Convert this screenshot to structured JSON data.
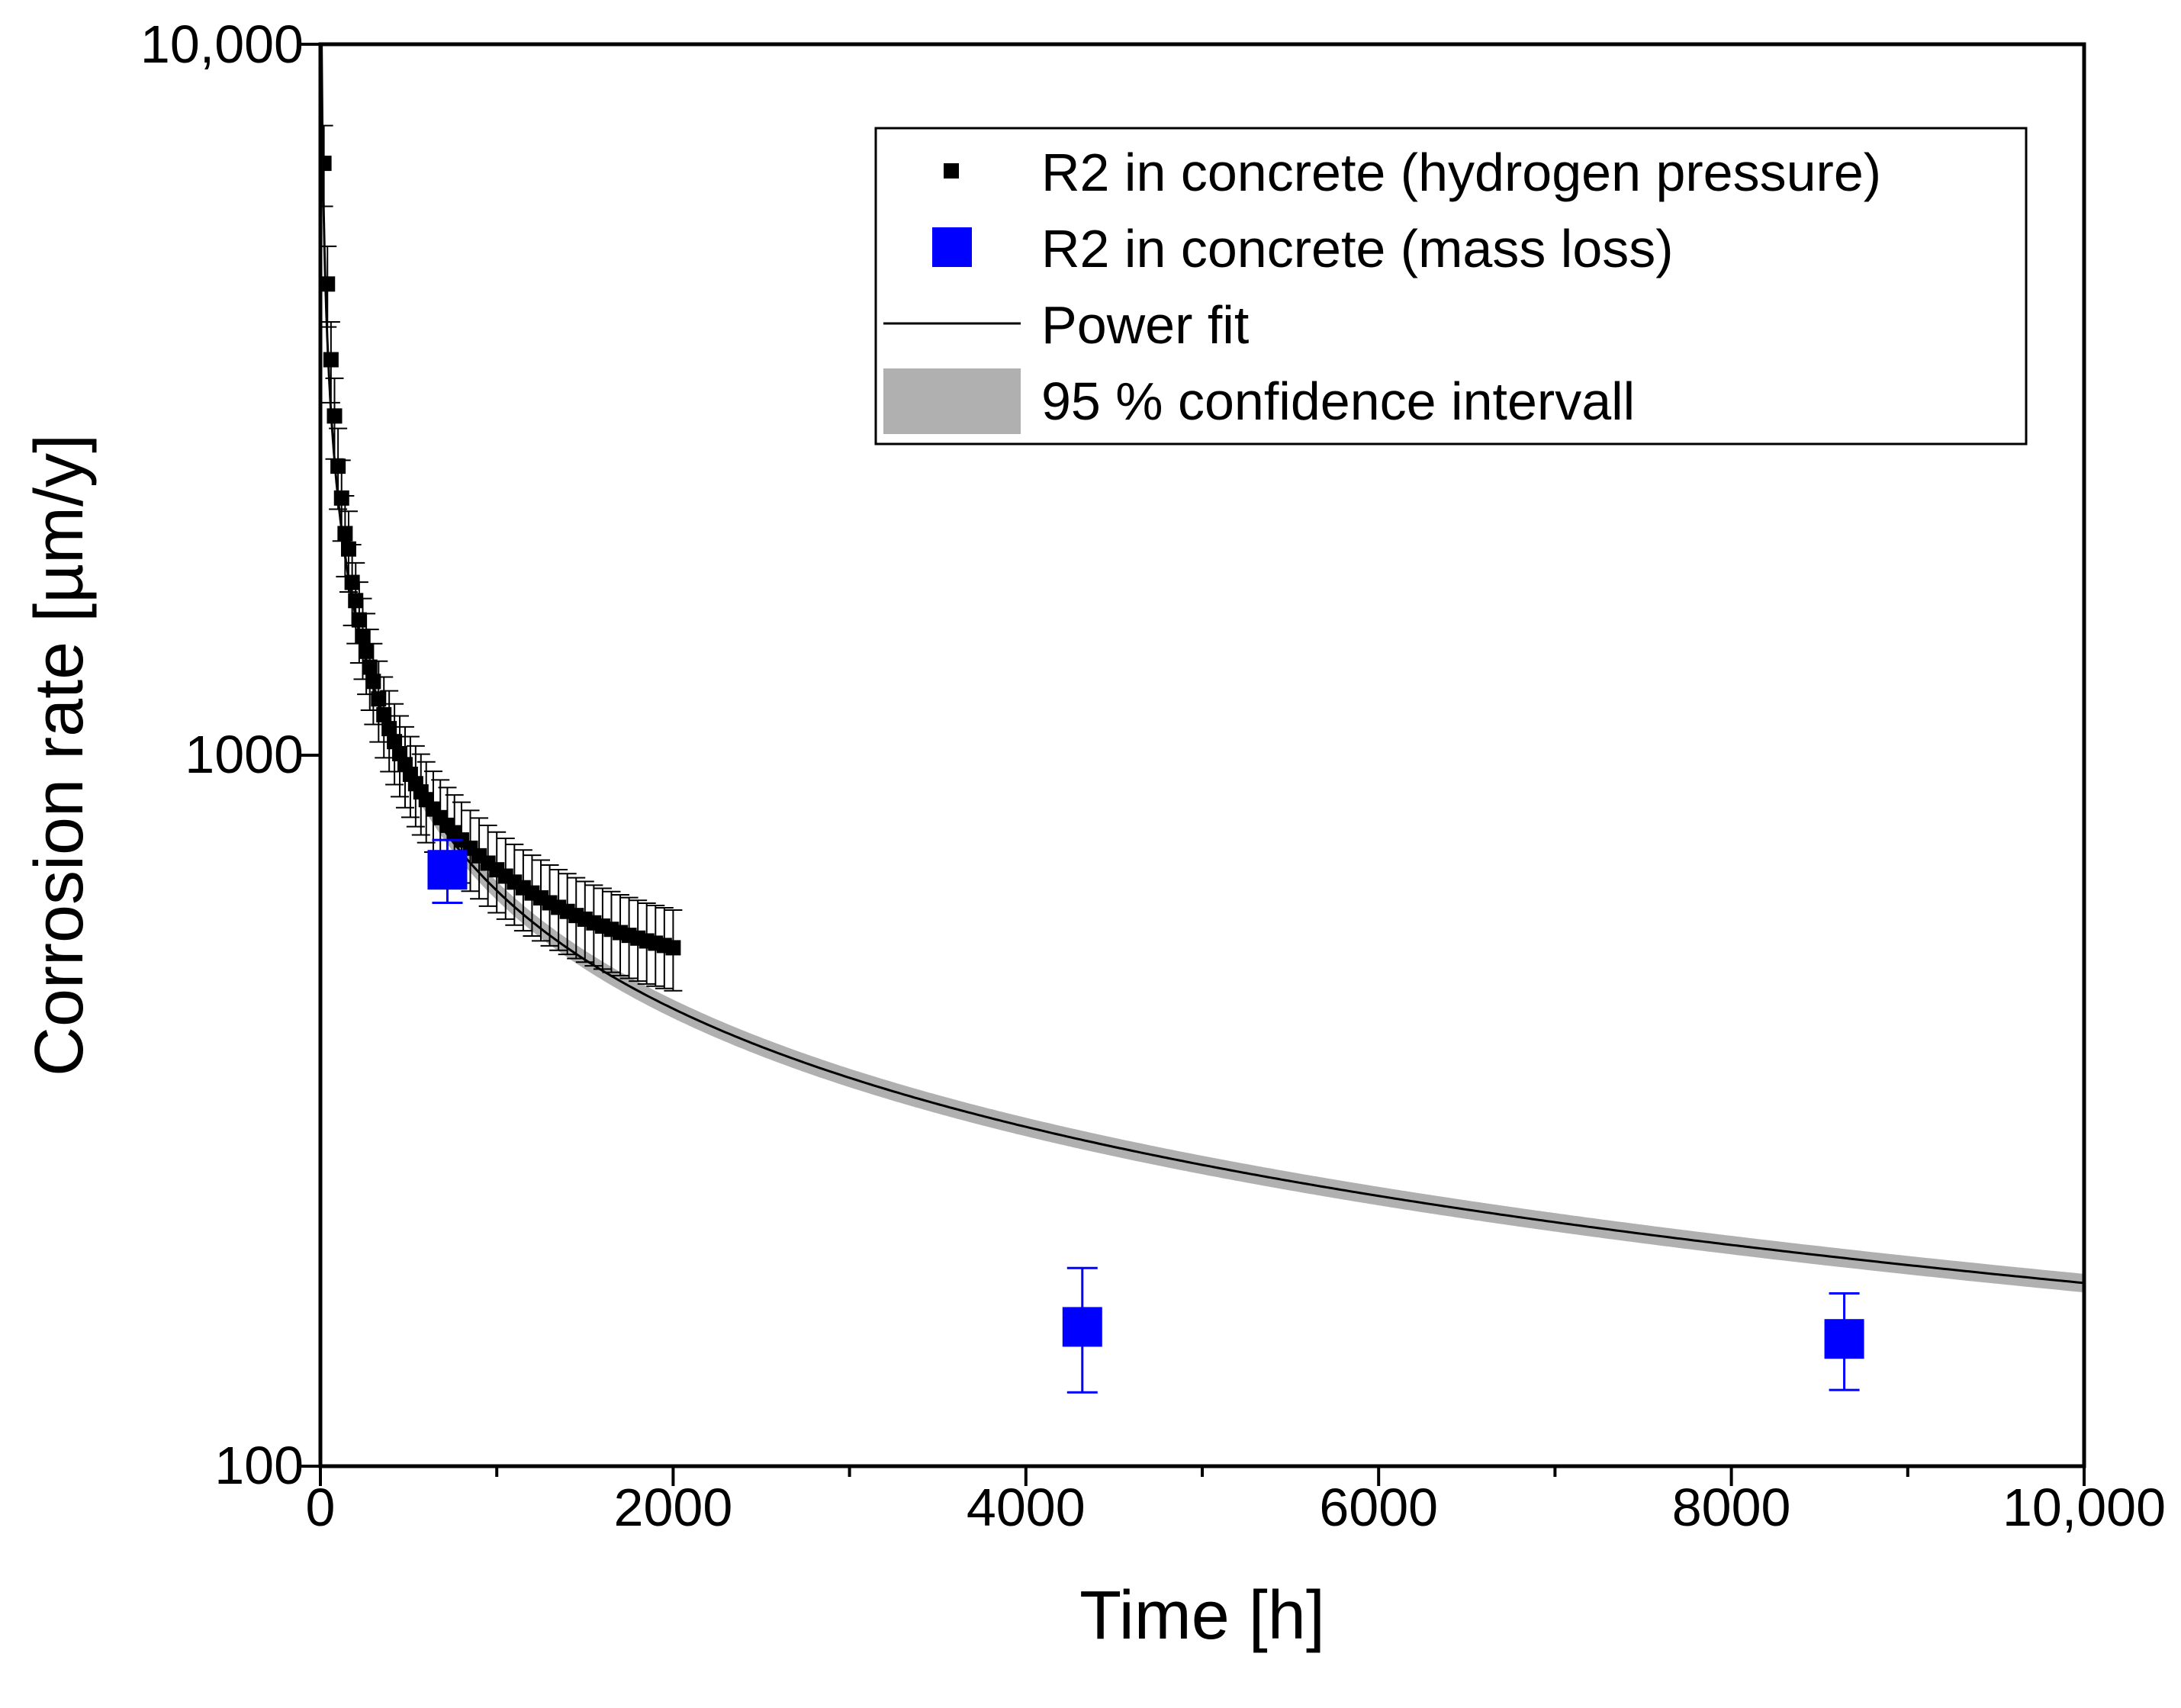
{
  "colors": {
    "hydrogen_marker": "#000000",
    "mass_loss_marker": "#0000ff",
    "fit_line": "#000000",
    "confidence_band": "#b0b0b0",
    "axes": "#000000"
  },
  "chart_data": {
    "type": "scatter",
    "title": "",
    "xlabel": "Time [h]",
    "ylabel": "Corrosion rate [µm/y]",
    "xscale": "linear",
    "yscale": "log",
    "xlim": [
      0,
      10000
    ],
    "ylim": [
      100,
      10000
    ],
    "grid": false,
    "legend_position": "top-right",
    "x_ticks": [
      {
        "value": 0,
        "label": "0"
      },
      {
        "value": 2000,
        "label": "2000"
      },
      {
        "value": 4000,
        "label": "4000"
      },
      {
        "value": 6000,
        "label": "6000"
      },
      {
        "value": 8000,
        "label": "8000"
      },
      {
        "value": 10000,
        "label": "10,000"
      }
    ],
    "y_ticks": [
      {
        "value": 100,
        "label": "100"
      },
      {
        "value": 1000,
        "label": "1000"
      },
      {
        "value": 10000,
        "label": "10,000"
      }
    ],
    "legend": [
      {
        "key": "hydrogen",
        "label": "R2 in concrete (hydrogen pressure)",
        "kind": "marker-small"
      },
      {
        "key": "mass_loss",
        "label": "R2 in concrete (mass loss)",
        "kind": "marker-large"
      },
      {
        "key": "fit",
        "label": "Power fit",
        "kind": "line"
      },
      {
        "key": "band",
        "label": "95 % confidence intervall",
        "kind": "band"
      }
    ],
    "series": [
      {
        "name": "R2 in concrete (hydrogen pressure)",
        "marker": "square-small",
        "relative_error": 0.13,
        "points": [
          {
            "x": 20,
            "y": 6800
          },
          {
            "x": 40,
            "y": 4600
          },
          {
            "x": 60,
            "y": 3600
          },
          {
            "x": 80,
            "y": 3000
          },
          {
            "x": 100,
            "y": 2550
          },
          {
            "x": 120,
            "y": 2300
          },
          {
            "x": 140,
            "y": 2050
          },
          {
            "x": 160,
            "y": 1950
          },
          {
            "x": 180,
            "y": 1750
          },
          {
            "x": 200,
            "y": 1650
          },
          {
            "x": 220,
            "y": 1550
          },
          {
            "x": 240,
            "y": 1470
          },
          {
            "x": 260,
            "y": 1400
          },
          {
            "x": 280,
            "y": 1330
          },
          {
            "x": 300,
            "y": 1270
          },
          {
            "x": 330,
            "y": 1200
          },
          {
            "x": 360,
            "y": 1140
          },
          {
            "x": 390,
            "y": 1090
          },
          {
            "x": 420,
            "y": 1045
          },
          {
            "x": 450,
            "y": 1005
          },
          {
            "x": 480,
            "y": 970
          },
          {
            "x": 510,
            "y": 940
          },
          {
            "x": 540,
            "y": 912
          },
          {
            "x": 570,
            "y": 888
          },
          {
            "x": 600,
            "y": 866
          },
          {
            "x": 640,
            "y": 840
          },
          {
            "x": 680,
            "y": 817
          },
          {
            "x": 720,
            "y": 797
          },
          {
            "x": 760,
            "y": 778
          },
          {
            "x": 800,
            "y": 760
          },
          {
            "x": 850,
            "y": 740
          },
          {
            "x": 900,
            "y": 722
          },
          {
            "x": 950,
            "y": 705
          },
          {
            "x": 1000,
            "y": 690
          },
          {
            "x": 1050,
            "y": 676
          },
          {
            "x": 1100,
            "y": 663
          },
          {
            "x": 1150,
            "y": 651
          },
          {
            "x": 1200,
            "y": 640
          },
          {
            "x": 1250,
            "y": 630
          },
          {
            "x": 1300,
            "y": 620
          },
          {
            "x": 1350,
            "y": 611
          },
          {
            "x": 1400,
            "y": 603
          },
          {
            "x": 1450,
            "y": 595
          },
          {
            "x": 1500,
            "y": 588
          },
          {
            "x": 1550,
            "y": 581
          },
          {
            "x": 1600,
            "y": 575
          },
          {
            "x": 1650,
            "y": 569
          },
          {
            "x": 1700,
            "y": 563
          },
          {
            "x": 1750,
            "y": 558
          },
          {
            "x": 1800,
            "y": 553
          },
          {
            "x": 1850,
            "y": 548
          },
          {
            "x": 1900,
            "y": 544
          },
          {
            "x": 1950,
            "y": 540
          },
          {
            "x": 2000,
            "y": 536
          }
        ]
      },
      {
        "name": "R2 in concrete (mass loss)",
        "marker": "square-large",
        "points": [
          {
            "x": 720,
            "y": 690,
            "y_low": 620,
            "y_high": 760
          },
          {
            "x": 4320,
            "y": 157,
            "y_low": 127,
            "y_high": 190
          },
          {
            "x": 8640,
            "y": 151,
            "y_low": 128,
            "y_high": 175
          }
        ]
      },
      {
        "name": "Power fit",
        "kind": "line",
        "x_start": 5,
        "x_end": 10000,
        "points": [
          {
            "x": 1000,
            "y": 645
          },
          {
            "x": 2000,
            "y": 440
          },
          {
            "x": 4000,
            "y": 300
          },
          {
            "x": 6000,
            "y": 238
          },
          {
            "x": 8000,
            "y": 204
          },
          {
            "x": 10000,
            "y": 181
          }
        ]
      },
      {
        "name": "95 % confidence intervall",
        "kind": "band",
        "lower_factor": 0.97,
        "upper_factor": 1.03
      }
    ]
  }
}
